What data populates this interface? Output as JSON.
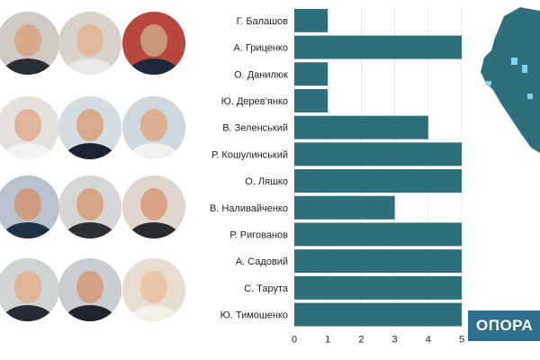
{
  "colors": {
    "bar": "#2f6e7b",
    "grid": "#e6e6e6",
    "label": "#222222",
    "brand_bg": "#2e6e8e",
    "map": "#2f6e7b",
    "map_region": "#7fd3f0"
  },
  "portraits": [
    {
      "name": "portrait-balashov"
    },
    {
      "name": "portrait-hrytsenko"
    },
    {
      "name": "portrait-danyliuk"
    },
    {
      "name": "portrait-derevianko"
    },
    {
      "name": "portrait-zelenskyi"
    },
    {
      "name": "portrait-koshulynskyi"
    },
    {
      "name": "portrait-liashko"
    },
    {
      "name": "portrait-nalyvaichenko"
    },
    {
      "name": "portrait-ryhovanov"
    },
    {
      "name": "portrait-sadovyi"
    },
    {
      "name": "portrait-taruta"
    },
    {
      "name": "portrait-tymoshenko"
    }
  ],
  "chart_data": {
    "type": "bar",
    "orientation": "horizontal",
    "categories": [
      "Г. Балашов",
      "А. Гриценко",
      "О. Данилюк",
      "Ю. Дерев’янко",
      "В. Зеленський",
      "Р. Кошулинський",
      "О. Ляшко",
      "В. Наливайченко",
      "Р. Ригованов",
      "А. Садовий",
      "С. Тарута",
      "Ю. Тимошенко"
    ],
    "values": [
      1,
      5,
      1,
      1,
      4,
      5,
      5,
      3,
      5,
      5,
      5,
      5
    ],
    "xlim": [
      0,
      5
    ],
    "xticks": [
      "0",
      "1",
      "2",
      "3",
      "4",
      "5"
    ],
    "title": "",
    "xlabel": "",
    "ylabel": "",
    "grid": true
  },
  "brand": {
    "label": "ОПОРА"
  }
}
